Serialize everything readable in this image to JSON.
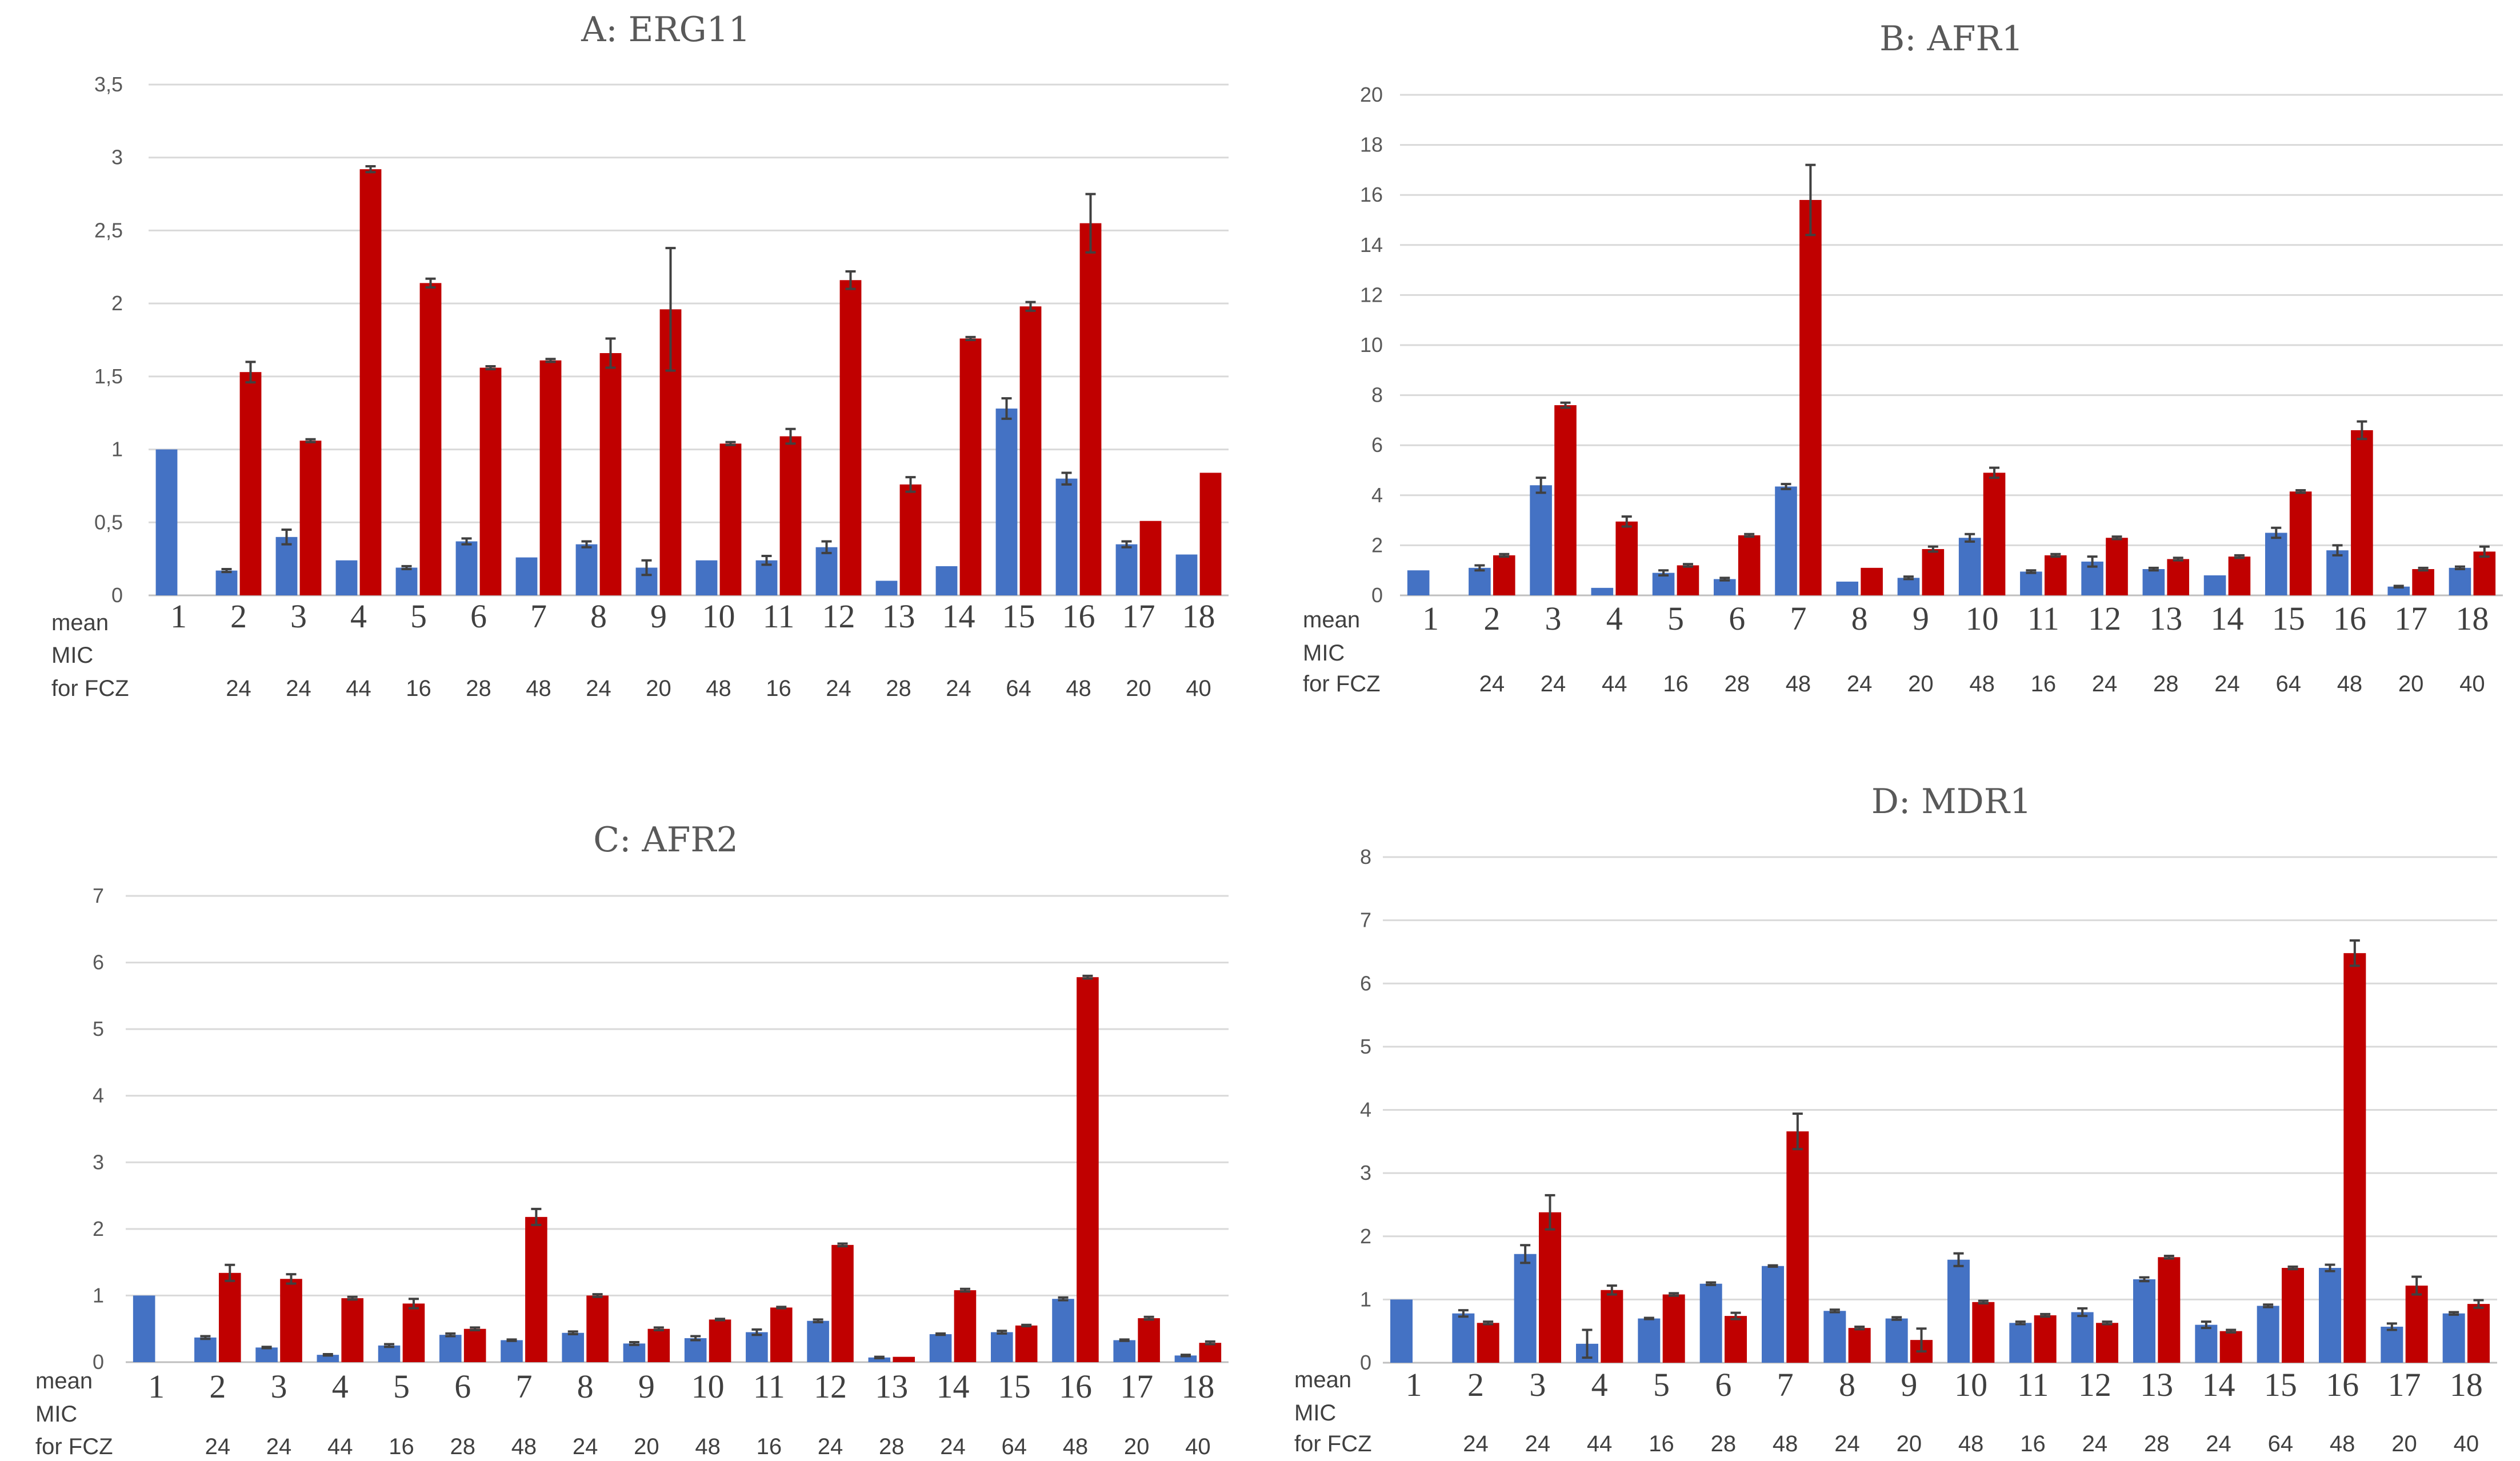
{
  "colors": {
    "series1": "#4472c4",
    "series2": "#c00000"
  },
  "mic_label_lines": [
    "mean",
    "MIC",
    "for FCZ"
  ],
  "chart_data": [
    {
      "type": "bar",
      "title": "A: ERG11",
      "categories": [
        "1",
        "2",
        "3",
        "4",
        "5",
        "6",
        "7",
        "8",
        "9",
        "10",
        "11",
        "12",
        "13",
        "14",
        "15",
        "16",
        "17",
        "18"
      ],
      "mic_values": [
        "",
        "24",
        "24",
        "44",
        "16",
        "28",
        "48",
        "24",
        "20",
        "48",
        "16",
        "24",
        "28",
        "24",
        "64",
        "48",
        "20",
        "40"
      ],
      "ylim": [
        0,
        3.5
      ],
      "yticks": [
        "0",
        "0,5",
        "1",
        "1,5",
        "2",
        "2,5",
        "3",
        "3,5"
      ],
      "series": [
        {
          "name": "series1",
          "values": [
            1.0,
            0.17,
            0.4,
            0.24,
            0.19,
            0.37,
            0.26,
            0.35,
            0.19,
            0.24,
            0.24,
            0.33,
            0.1,
            0.2,
            1.28,
            0.8,
            0.35,
            0.28
          ],
          "errors": [
            0,
            0.01,
            0.05,
            0,
            0.01,
            0.02,
            0,
            0.02,
            0.05,
            0,
            0.03,
            0.04,
            0,
            0,
            0.07,
            0.04,
            0.02,
            0
          ]
        },
        {
          "name": "series2",
          "values": [
            null,
            1.53,
            1.06,
            2.92,
            2.14,
            1.56,
            1.61,
            1.66,
            1.96,
            1.04,
            1.09,
            2.16,
            0.76,
            1.76,
            1.98,
            2.55,
            0.51,
            0.84
          ],
          "errors": [
            0,
            0.07,
            0.01,
            0.02,
            0.03,
            0.01,
            0.01,
            0.1,
            0.42,
            0.01,
            0.05,
            0.06,
            0.05,
            0.01,
            0.03,
            0.2,
            0,
            0
          ]
        }
      ]
    },
    {
      "type": "bar",
      "title": "B: AFR1",
      "categories": [
        "1",
        "2",
        "3",
        "4",
        "5",
        "6",
        "7",
        "8",
        "9",
        "10",
        "11",
        "12",
        "13",
        "14",
        "15",
        "16",
        "17",
        "18"
      ],
      "mic_values": [
        "",
        "24",
        "24",
        "44",
        "16",
        "28",
        "48",
        "24",
        "20",
        "48",
        "16",
        "24",
        "28",
        "24",
        "64",
        "48",
        "20",
        "40"
      ],
      "ylim": [
        0,
        20
      ],
      "yticks": [
        "0",
        "2",
        "4",
        "6",
        "8",
        "10",
        "12",
        "14",
        "16",
        "18",
        "20"
      ],
      "series": [
        {
          "name": "series1",
          "values": [
            1.0,
            1.1,
            4.4,
            0.3,
            0.9,
            0.65,
            4.35,
            0.55,
            0.7,
            2.3,
            0.95,
            1.35,
            1.05,
            0.8,
            2.5,
            1.8,
            0.35,
            1.1
          ],
          "errors": [
            0,
            0.1,
            0.3,
            0,
            0.1,
            0.05,
            0.1,
            0,
            0.05,
            0.15,
            0.05,
            0.2,
            0.05,
            0,
            0.2,
            0.2,
            0.03,
            0.05
          ]
        },
        {
          "name": "series2",
          "values": [
            null,
            1.6,
            7.6,
            2.95,
            1.2,
            2.4,
            15.8,
            1.1,
            1.85,
            4.9,
            1.6,
            2.3,
            1.45,
            1.55,
            4.15,
            6.6,
            1.05,
            1.75
          ],
          "errors": [
            0,
            0.05,
            0.1,
            0.2,
            0.05,
            0.05,
            1.4,
            0,
            0.1,
            0.2,
            0.05,
            0.05,
            0.05,
            0.05,
            0.05,
            0.35,
            0.05,
            0.2
          ]
        }
      ]
    },
    {
      "type": "bar",
      "title": "C: AFR2",
      "categories": [
        "1",
        "2",
        "3",
        "4",
        "5",
        "6",
        "7",
        "8",
        "9",
        "10",
        "11",
        "12",
        "13",
        "14",
        "15",
        "16",
        "17",
        "18"
      ],
      "mic_values": [
        "",
        "24",
        "24",
        "44",
        "16",
        "28",
        "48",
        "24",
        "20",
        "48",
        "16",
        "24",
        "28",
        "24",
        "64",
        "48",
        "20",
        "40"
      ],
      "ylim": [
        0,
        7
      ],
      "yticks": [
        "0",
        "1",
        "2",
        "3",
        "4",
        "5",
        "6",
        "7"
      ],
      "series": [
        {
          "name": "series1",
          "values": [
            1.0,
            0.37,
            0.22,
            0.11,
            0.25,
            0.41,
            0.33,
            0.44,
            0.28,
            0.36,
            0.45,
            0.62,
            0.07,
            0.42,
            0.45,
            0.95,
            0.33,
            0.1
          ],
          "errors": [
            0,
            0.02,
            0.01,
            0.01,
            0.02,
            0.02,
            0.01,
            0.02,
            0.02,
            0.03,
            0.04,
            0.02,
            0.01,
            0.01,
            0.02,
            0.02,
            0.01,
            0.01
          ]
        },
        {
          "name": "series2",
          "values": [
            null,
            1.34,
            1.25,
            0.96,
            0.88,
            0.5,
            2.18,
            1.0,
            0.5,
            0.64,
            0.82,
            1.76,
            0.08,
            1.08,
            0.55,
            5.78,
            0.66,
            0.29
          ],
          "errors": [
            0,
            0.12,
            0.07,
            0.02,
            0.07,
            0.02,
            0.12,
            0.02,
            0.02,
            0.01,
            0.01,
            0.02,
            0,
            0.02,
            0.01,
            0.02,
            0.02,
            0.02
          ]
        }
      ]
    },
    {
      "type": "bar",
      "title": "D: MDR1",
      "categories": [
        "1",
        "2",
        "3",
        "4",
        "5",
        "6",
        "7",
        "8",
        "9",
        "10",
        "11",
        "12",
        "13",
        "14",
        "15",
        "16",
        "17",
        "18"
      ],
      "mic_values": [
        "",
        "24",
        "24",
        "44",
        "16",
        "28",
        "48",
        "24",
        "20",
        "48",
        "16",
        "24",
        "28",
        "24",
        "64",
        "48",
        "20",
        "40"
      ],
      "ylim": [
        0,
        8
      ],
      "yticks": [
        "0",
        "1",
        "2",
        "3",
        "4",
        "5",
        "6",
        "7",
        "8"
      ],
      "series": [
        {
          "name": "series1",
          "values": [
            1.0,
            0.78,
            1.72,
            0.3,
            0.7,
            1.25,
            1.53,
            0.82,
            0.7,
            1.63,
            0.63,
            0.8,
            1.32,
            0.6,
            0.9,
            1.5,
            0.57,
            0.78
          ],
          "errors": [
            0,
            0.05,
            0.14,
            0.22,
            0.01,
            0.02,
            0.01,
            0.02,
            0.02,
            0.1,
            0.02,
            0.06,
            0.03,
            0.05,
            0.02,
            0.05,
            0.05,
            0.02
          ]
        },
        {
          "name": "series2",
          "values": [
            null,
            0.63,
            2.38,
            1.15,
            1.08,
            0.74,
            3.66,
            0.55,
            0.36,
            0.96,
            0.75,
            0.63,
            1.67,
            0.5,
            1.5,
            6.48,
            1.22,
            0.93
          ],
          "errors": [
            0,
            0.02,
            0.27,
            0.07,
            0.02,
            0.05,
            0.28,
            0.02,
            0.18,
            0.02,
            0.02,
            0.02,
            0.02,
            0.02,
            0.02,
            0.2,
            0.14,
            0.06
          ]
        }
      ]
    }
  ]
}
